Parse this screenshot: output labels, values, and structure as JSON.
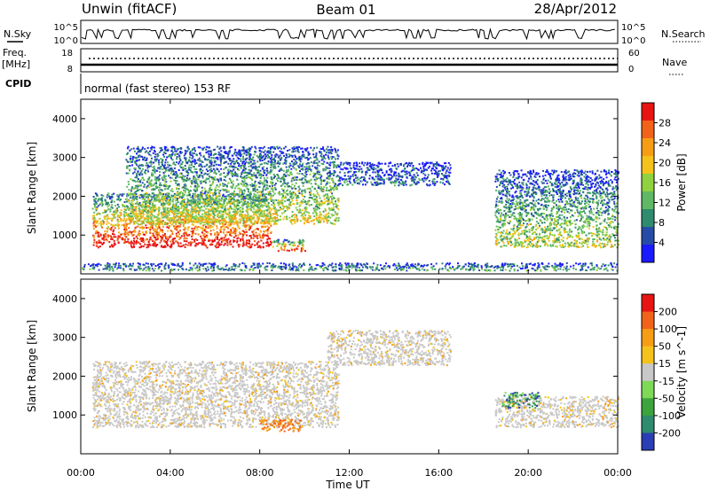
{
  "header": {
    "title_left": "Unwin (fitACF)",
    "title_center": "Beam 01",
    "title_right": "28/Apr/2012"
  },
  "status_panels": {
    "nsky_label": "N.Sky",
    "nsky_ticks": [
      "10^5",
      "10^0"
    ],
    "nsearch_label": "N.Search",
    "nsearch_ticks": [
      "10^5",
      "10^0"
    ],
    "freq_label_1": "Freq.",
    "freq_label_2": "[MHz]",
    "freq_ticks": [
      "18",
      "8"
    ],
    "nave_label": "Nave",
    "nave_ticks": [
      "60",
      "0"
    ],
    "cpid_label": "CPID",
    "cpid_text": "normal (fast stereo) 153 RF"
  },
  "chart_data": [
    {
      "type": "heatmap",
      "name": "power-panel",
      "ylabel": "Slant Range [km]",
      "yticks": [
        "1000",
        "2000",
        "3000",
        "4000"
      ],
      "ylim": [
        0,
        4500
      ],
      "xlim": [
        0,
        24
      ],
      "colorbar_label": "Power [dB]",
      "colorbar_ticks": [
        "4",
        "8",
        "12",
        "16",
        "20",
        "24",
        "28"
      ],
      "colors": [
        "#1a1aff",
        "#264ca8",
        "#2e8b6e",
        "#5fb864",
        "#8fd13f",
        "#f4c21a",
        "#f79d15",
        "#f2621a",
        "#e81414"
      ],
      "regions": [
        {
          "x": [
            0.5,
            8.5
          ],
          "y": [
            700,
            2100
          ],
          "level": 0.9
        },
        {
          "x": [
            2.0,
            11.5
          ],
          "y": [
            1300,
            3300
          ],
          "level": 0.5
        },
        {
          "x": [
            11.5,
            16.5
          ],
          "y": [
            2300,
            2900
          ],
          "level": 0.2
        },
        {
          "x": [
            8.5,
            10.0
          ],
          "y": [
            600,
            900
          ],
          "level": 0.85
        },
        {
          "x": [
            18.5,
            24.0
          ],
          "y": [
            700,
            2700
          ],
          "level": 0.45
        },
        {
          "x": [
            0,
            24
          ],
          "y": [
            100,
            300
          ],
          "level": 0.3
        }
      ]
    },
    {
      "type": "heatmap",
      "name": "velocity-panel",
      "xlabel": "Time UT",
      "ylabel": "Slant Range [km]",
      "xticks": [
        "00:00",
        "04:00",
        "08:00",
        "12:00",
        "16:00",
        "20:00",
        "00:00"
      ],
      "yticks": [
        "1000",
        "2000",
        "3000",
        "4000"
      ],
      "ylim": [
        0,
        4500
      ],
      "xlim": [
        0,
        24
      ],
      "colorbar_label": "Velocity [m s^-1]",
      "colorbar_ticks": [
        "200",
        "100",
        "50",
        "15",
        "-15",
        "-50",
        "-100",
        "-200"
      ],
      "colors": [
        "#2a3fb5",
        "#2e8b6e",
        "#3da33d",
        "#7ed957",
        "#c8c8c8",
        "#f4c21a",
        "#f79d15",
        "#f2621a",
        "#e81414"
      ],
      "regions": [
        {
          "x": [
            0.5,
            11.5
          ],
          "y": [
            700,
            2400
          ],
          "level": "ground"
        },
        {
          "x": [
            11.0,
            16.5
          ],
          "y": [
            2300,
            3200
          ],
          "level": "ground"
        },
        {
          "x": [
            8.0,
            9.8
          ],
          "y": [
            600,
            900
          ],
          "level": "away"
        },
        {
          "x": [
            18.5,
            24.0
          ],
          "y": [
            700,
            1500
          ],
          "level": "ground"
        },
        {
          "x": [
            18.8,
            20.5
          ],
          "y": [
            1200,
            1600
          ],
          "level": "toward"
        }
      ]
    }
  ]
}
